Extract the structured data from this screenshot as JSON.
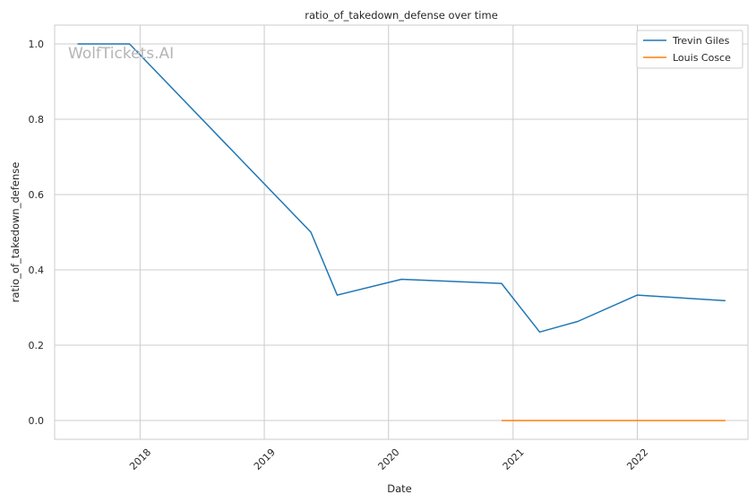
{
  "chart_data": {
    "type": "line",
    "title": "ratio_of_takedown_defense over time",
    "xlabel": "Date",
    "ylabel": "ratio_of_takedown_defense",
    "watermark": "WolfTickets.AI",
    "xlim": [
      "2017-04-25",
      "2022-11-22"
    ],
    "ylim": [
      -0.05,
      1.05
    ],
    "x_ticks": [
      "2018",
      "2019",
      "2020",
      "2021",
      "2022"
    ],
    "y_ticks": [
      "0.0",
      "0.2",
      "0.4",
      "0.6",
      "0.8",
      "1.0"
    ],
    "grid": true,
    "legend_position": "top-right",
    "series": [
      {
        "name": "Trevin Giles",
        "color": "#1f77b4",
        "x": [
          "2017-07-01",
          "2017-12-01",
          "2019-05-18",
          "2019-08-03",
          "2020-02-08",
          "2020-11-28",
          "2021-03-20",
          "2021-07-10",
          "2022-01-01",
          "2022-09-17"
        ],
        "y": [
          1.0,
          1.0,
          0.5,
          0.333,
          0.375,
          0.364,
          0.235,
          0.263,
          0.333,
          0.318
        ]
      },
      {
        "name": "Louis Cosce",
        "color": "#ff7f0e",
        "x": [
          "2020-11-28",
          "2022-09-17"
        ],
        "y": [
          0.0,
          0.0
        ]
      }
    ]
  }
}
